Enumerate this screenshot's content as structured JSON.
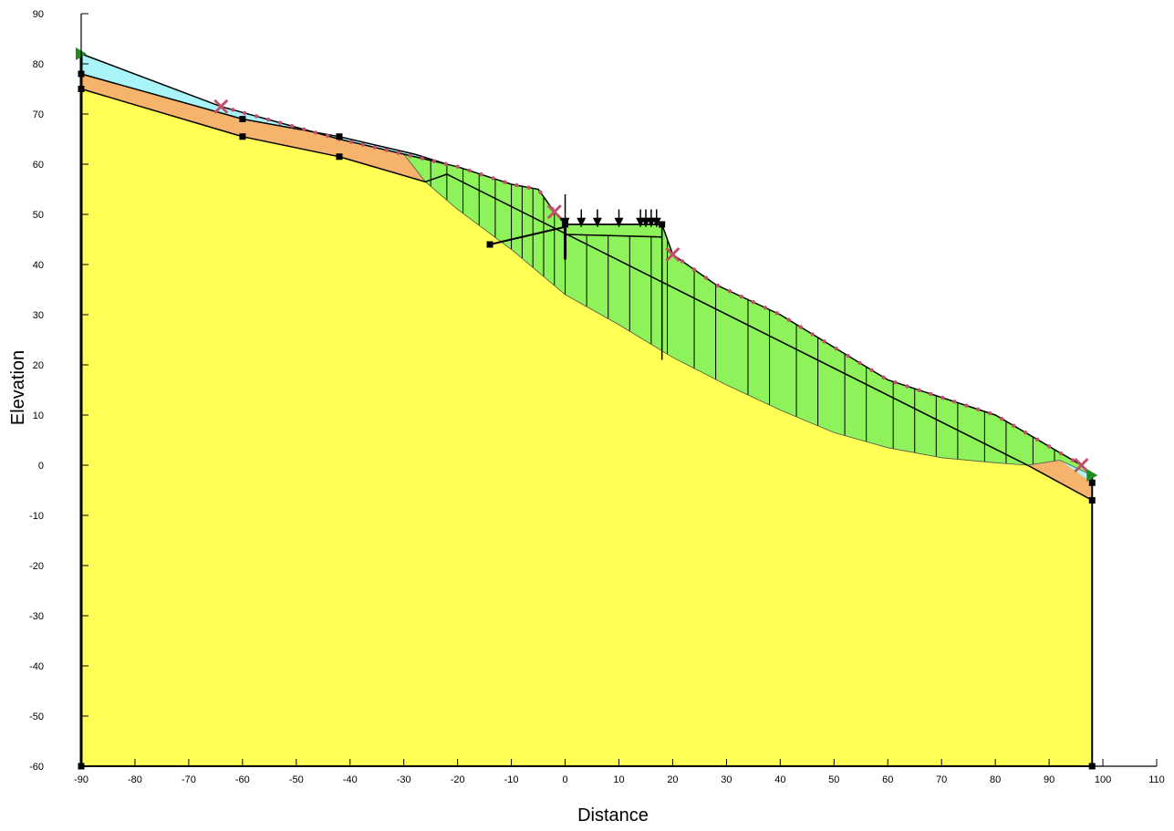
{
  "chart_data": {
    "type": "slope-stability-section",
    "xlabel": "Distance",
    "ylabel": "Elevation",
    "xlim": [
      -90,
      110
    ],
    "ylim": [
      -60,
      90
    ],
    "x_ticks": [
      -90,
      -80,
      -70,
      -60,
      -50,
      -40,
      -30,
      -20,
      -10,
      0,
      10,
      20,
      30,
      40,
      50,
      60,
      70,
      80,
      90,
      100,
      110
    ],
    "y_ticks": [
      90,
      80,
      70,
      60,
      50,
      40,
      30,
      20,
      10,
      0,
      -10,
      -20,
      -30,
      -40,
      -50,
      -60
    ],
    "colors": {
      "bedrock": "#ffff55",
      "weathered_layer": "#f5b36b",
      "surface_layer": "#a8f4f8",
      "sliding_mass": "#8ef25a",
      "slip_surface_markers": "#c0506a",
      "boundary": "#000000",
      "water_marker": "#228b22"
    },
    "layers": {
      "ground_surface": [
        [
          -90,
          82
        ],
        [
          -64,
          71.5
        ],
        [
          -42,
          65
        ],
        [
          -30,
          62
        ],
        [
          -20,
          59.5
        ],
        [
          -10,
          56
        ],
        [
          -5,
          55
        ],
        [
          -2,
          50.5
        ],
        [
          0,
          48
        ],
        [
          18,
          48
        ],
        [
          20,
          42
        ],
        [
          28,
          36
        ],
        [
          40,
          30
        ],
        [
          60,
          17
        ],
        [
          80,
          10
        ],
        [
          96,
          0
        ],
        [
          98,
          -2
        ]
      ],
      "surface_layer_bottom": [
        [
          -90,
          78
        ],
        [
          -60,
          69
        ],
        [
          -42,
          65.5
        ],
        [
          -28,
          62
        ],
        [
          -22,
          60
        ]
      ],
      "weathered_bottom": [
        [
          -90,
          75
        ],
        [
          -60,
          65.5
        ],
        [
          -42,
          61.5
        ],
        [
          -26,
          56.5
        ],
        [
          -22,
          58
        ],
        [
          86,
          0
        ],
        [
          98,
          -7
        ]
      ],
      "slip_surface": [
        [
          -30,
          62
        ],
        [
          -26,
          56.5
        ],
        [
          -20,
          51
        ],
        [
          -10,
          43
        ],
        [
          0,
          34
        ],
        [
          10,
          28
        ],
        [
          20,
          21.5
        ],
        [
          30,
          16
        ],
        [
          40,
          11
        ],
        [
          50,
          6.5
        ],
        [
          60,
          3.5
        ],
        [
          70,
          1.5
        ],
        [
          80,
          0.5
        ],
        [
          86,
          0
        ],
        [
          92,
          1
        ],
        [
          98,
          -2
        ]
      ],
      "retaining_platform": [
        [
          0,
          48
        ],
        [
          18,
          48
        ],
        [
          18,
          45.5
        ],
        [
          0,
          46
        ]
      ],
      "anchor_line": [
        [
          -14,
          44
        ],
        [
          0,
          47.5
        ]
      ]
    },
    "slice_x": [
      -25,
      -22,
      -19,
      -16,
      -13,
      -10,
      -8,
      -6,
      -4,
      -2,
      0,
      4,
      8,
      12,
      16,
      18,
      19,
      24,
      28,
      34,
      38,
      43,
      47,
      52,
      56,
      61,
      65,
      69,
      73,
      78,
      82,
      87,
      91
    ],
    "load_arrows_x": [
      0,
      3,
      6,
      10,
      14,
      15,
      16,
      17
    ],
    "slip_entry_exit": [
      [
        -64,
        71.5
      ],
      [
        -2,
        50.5
      ],
      [
        20,
        42
      ],
      [
        96,
        0
      ]
    ]
  }
}
